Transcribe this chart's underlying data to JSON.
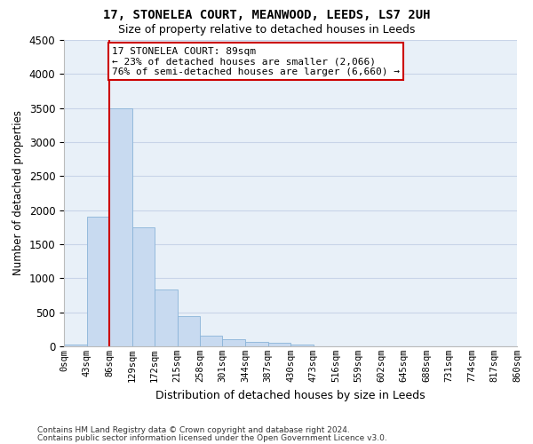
{
  "title_line1": "17, STONELEA COURT, MEANWOOD, LEEDS, LS7 2UH",
  "title_line2": "Size of property relative to detached houses in Leeds",
  "xlabel": "Distribution of detached houses by size in Leeds",
  "ylabel": "Number of detached properties",
  "bar_color": "#c8daf0",
  "bar_edge_color": "#8ab4d8",
  "bar_values": [
    25,
    1900,
    3500,
    1750,
    830,
    450,
    155,
    100,
    65,
    55,
    30,
    5,
    2,
    1,
    1,
    0,
    0,
    0,
    0,
    0
  ],
  "bin_edges": [
    0,
    43,
    86,
    129,
    172,
    215,
    258,
    301,
    344,
    387,
    430,
    473,
    516,
    559,
    602,
    645,
    688,
    731,
    774,
    817,
    860
  ],
  "tick_labels": [
    "0sqm",
    "43sqm",
    "86sqm",
    "129sqm",
    "172sqm",
    "215sqm",
    "258sqm",
    "301sqm",
    "344sqm",
    "387sqm",
    "430sqm",
    "473sqm",
    "516sqm",
    "559sqm",
    "602sqm",
    "645sqm",
    "688sqm",
    "731sqm",
    "774sqm",
    "817sqm",
    "860sqm"
  ],
  "ylim": [
    0,
    4500
  ],
  "yticks": [
    0,
    500,
    1000,
    1500,
    2000,
    2500,
    3000,
    3500,
    4000,
    4500
  ],
  "vline_x": 86,
  "annotation_text": "17 STONELEA COURT: 89sqm\n← 23% of detached houses are smaller (2,066)\n76% of semi-detached houses are larger (6,660) →",
  "annotation_box_color": "#ffffff",
  "annotation_box_edge_color": "#cc0000",
  "vline_color": "#cc0000",
  "grid_color": "#c8d4e8",
  "background_color": "#e8f0f8",
  "footer_line1": "Contains HM Land Registry data © Crown copyright and database right 2024.",
  "footer_line2": "Contains public sector information licensed under the Open Government Licence v3.0."
}
